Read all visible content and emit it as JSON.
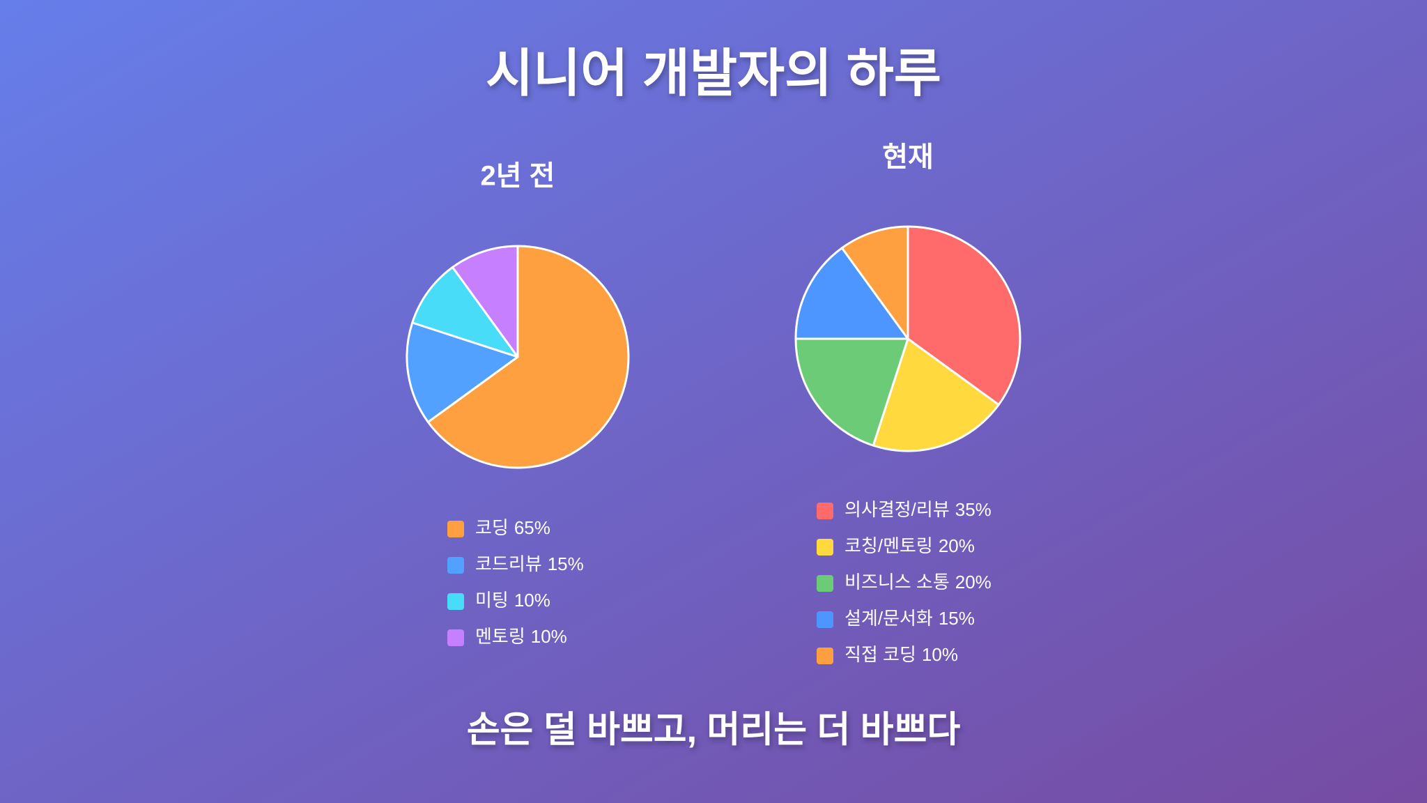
{
  "title": "시니어 개발자의 하루",
  "footer": "손은 덜 바쁘고, 머리는 더 바쁘다",
  "chart_data": [
    {
      "type": "pie",
      "title": "2년 전",
      "categories": [
        "코딩",
        "코드리뷰",
        "미팅",
        "멘토링"
      ],
      "values": [
        65,
        15,
        10,
        10
      ],
      "value_labels": [
        "65%",
        "15%",
        "10%",
        "10%"
      ],
      "colors": [
        "#ffa040",
        "#52a0ff",
        "#48dcf8",
        "#c680ff"
      ]
    },
    {
      "type": "pie",
      "title": "현재",
      "categories": [
        "의사결정/리뷰",
        "코칭/멘토링",
        "비즈니스 소통",
        "설계/문서화",
        "직접 코딩"
      ],
      "values": [
        35,
        20,
        20,
        15,
        10
      ],
      "value_labels": [
        "35%",
        "20%",
        "20%",
        "15%",
        "10%"
      ],
      "colors": [
        "#ff6b6b",
        "#ffd93d",
        "#6bcb77",
        "#4d96ff",
        "#ffa040"
      ]
    }
  ]
}
